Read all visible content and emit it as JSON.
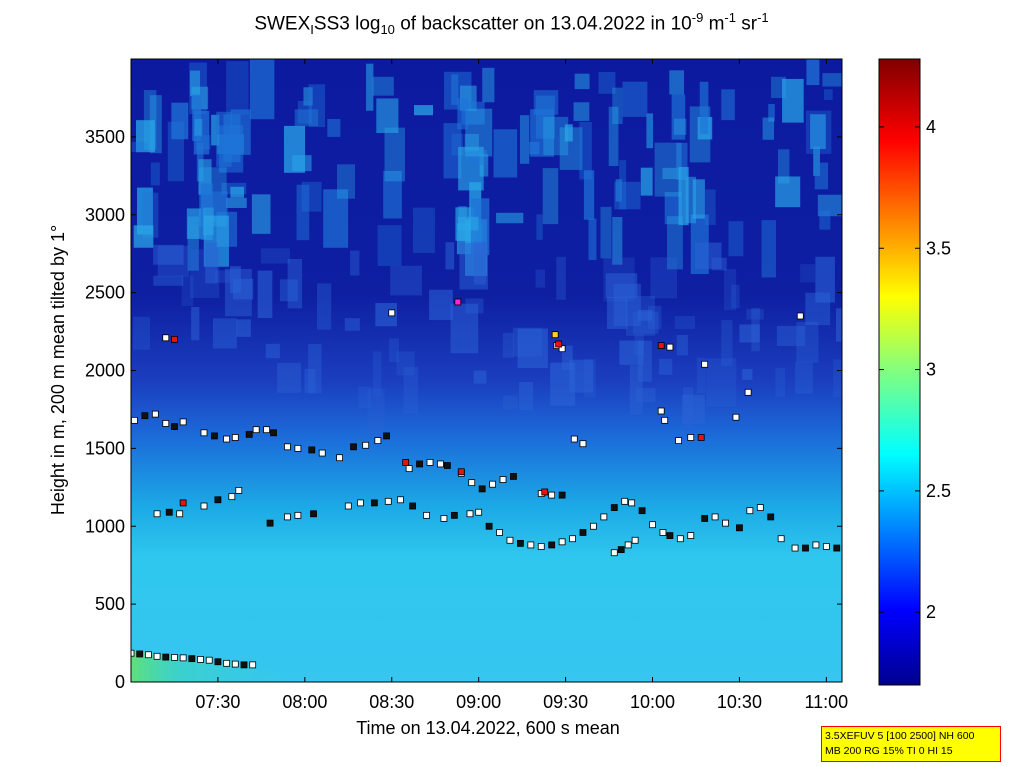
{
  "title": {
    "p1": "SWEX",
    "sub1": "I",
    "p2": "SS3 log",
    "sub2": "10",
    "p3": " of backscatter on 13.04.2022 in 10",
    "sup1": "-9",
    "p4": " m",
    "sup2": "-1",
    "p5": " sr",
    "sup3": "-1"
  },
  "chart_data": {
    "type": "heatmap",
    "title": "SWEX_I SS3 log_10 of backscatter on 13.04.2022 in 10^-9 m^-1 sr^-1",
    "xlabel": "Time on 13.04.2022, 600 s mean",
    "ylabel": "Height in m, 200 m mean tilted by 1°",
    "x_ticks": [
      "07:30",
      "08:00",
      "08:30",
      "09:00",
      "09:30",
      "10:00",
      "10:30",
      "11:00"
    ],
    "x_tick_hours": [
      7.5,
      8.0,
      8.5,
      9.0,
      9.5,
      10.0,
      10.5,
      11.0
    ],
    "xlim_hours": [
      7.0,
      11.09
    ],
    "y_ticks": [
      0,
      500,
      1000,
      1500,
      2000,
      2500,
      3000,
      3500
    ],
    "ylim": [
      0,
      4000
    ],
    "colorbar": {
      "ticks": [
        2,
        2.5,
        3,
        3.5,
        4
      ],
      "range": [
        1.7,
        4.28
      ],
      "colormap": "jet"
    },
    "layers": [
      {
        "name": "upper",
        "height_range": [
          2400,
          4000
        ],
        "value": 1.9
      },
      {
        "name": "middle",
        "height_range": [
          1600,
          2400
        ],
        "value": 2.2
      },
      {
        "name": "lower",
        "height_range": [
          0,
          1600
        ],
        "value": 2.65
      }
    ],
    "marker_series": [
      {
        "label": "layer-1600",
        "points": [
          [
            7.02,
            1680
          ],
          [
            7.08,
            1710
          ],
          [
            7.14,
            1720
          ],
          [
            7.2,
            1660
          ],
          [
            7.25,
            1640
          ],
          [
            7.3,
            1670
          ],
          [
            7.42,
            1600
          ],
          [
            7.48,
            1580
          ],
          [
            7.55,
            1560
          ],
          [
            7.6,
            1570
          ],
          [
            7.68,
            1590
          ],
          [
            7.72,
            1620
          ],
          [
            7.78,
            1620
          ],
          [
            7.82,
            1600
          ],
          [
            7.9,
            1510
          ],
          [
            7.96,
            1500
          ],
          [
            8.04,
            1490
          ],
          [
            8.1,
            1470
          ],
          [
            8.2,
            1440
          ],
          [
            8.28,
            1510
          ],
          [
            8.35,
            1520
          ],
          [
            8.42,
            1550
          ],
          [
            8.47,
            1580
          ]
        ]
      },
      {
        "label": "layer-1200",
        "points": [
          [
            8.6,
            1370
          ],
          [
            8.66,
            1400
          ],
          [
            8.72,
            1410
          ],
          [
            8.78,
            1400
          ],
          [
            8.82,
            1390
          ],
          [
            8.9,
            1340
          ],
          [
            8.96,
            1280
          ],
          [
            9.02,
            1240
          ],
          [
            9.08,
            1270
          ],
          [
            9.14,
            1300
          ],
          [
            9.2,
            1320
          ],
          [
            9.36,
            1210
          ],
          [
            9.42,
            1200
          ],
          [
            9.48,
            1200
          ]
        ]
      },
      {
        "label": "layer-1000",
        "points": [
          [
            7.15,
            1080
          ],
          [
            7.22,
            1090
          ],
          [
            7.28,
            1080
          ],
          [
            7.42,
            1130
          ],
          [
            7.5,
            1170
          ],
          [
            7.58,
            1190
          ],
          [
            7.62,
            1230
          ],
          [
            7.8,
            1020
          ],
          [
            7.9,
            1060
          ],
          [
            7.96,
            1070
          ],
          [
            8.05,
            1080
          ],
          [
            8.25,
            1130
          ],
          [
            8.32,
            1150
          ],
          [
            8.4,
            1150
          ],
          [
            8.48,
            1160
          ],
          [
            8.55,
            1170
          ],
          [
            8.62,
            1130
          ],
          [
            8.7,
            1070
          ],
          [
            8.8,
            1050
          ],
          [
            8.86,
            1070
          ],
          [
            8.95,
            1080
          ],
          [
            9.0,
            1090
          ],
          [
            9.06,
            1000
          ],
          [
            9.12,
            960
          ],
          [
            9.18,
            910
          ],
          [
            9.24,
            890
          ],
          [
            9.3,
            880
          ],
          [
            9.36,
            870
          ],
          [
            9.42,
            880
          ],
          [
            9.48,
            900
          ],
          [
            9.54,
            920
          ],
          [
            9.6,
            960
          ],
          [
            9.66,
            1000
          ],
          [
            9.72,
            1060
          ],
          [
            9.78,
            1120
          ],
          [
            9.84,
            1160
          ],
          [
            9.88,
            1150
          ],
          [
            9.94,
            1100
          ],
          [
            10.0,
            1010
          ],
          [
            10.06,
            960
          ],
          [
            10.1,
            940
          ],
          [
            10.16,
            920
          ],
          [
            10.22,
            940
          ],
          [
            10.3,
            1050
          ],
          [
            10.36,
            1060
          ],
          [
            10.42,
            1020
          ],
          [
            10.5,
            990
          ],
          [
            10.56,
            1100
          ],
          [
            10.62,
            1120
          ],
          [
            10.68,
            1060
          ],
          [
            10.74,
            920
          ],
          [
            10.82,
            860
          ],
          [
            10.88,
            860
          ],
          [
            10.94,
            880
          ],
          [
            11.0,
            870
          ],
          [
            11.06,
            860
          ]
        ]
      },
      {
        "label": "dip-850",
        "points": [
          [
            9.78,
            830
          ],
          [
            9.82,
            850
          ],
          [
            9.86,
            880
          ],
          [
            9.9,
            910
          ]
        ]
      },
      {
        "label": "surface-150",
        "points": [
          [
            7.0,
            185
          ],
          [
            7.05,
            180
          ],
          [
            7.1,
            175
          ],
          [
            7.15,
            165
          ],
          [
            7.2,
            160
          ],
          [
            7.25,
            158
          ],
          [
            7.3,
            155
          ],
          [
            7.35,
            150
          ],
          [
            7.4,
            145
          ],
          [
            7.45,
            140
          ],
          [
            7.5,
            130
          ],
          [
            7.55,
            120
          ],
          [
            7.6,
            115
          ],
          [
            7.65,
            110
          ],
          [
            7.7,
            110
          ]
        ]
      },
      {
        "label": "scattered-high",
        "points": [
          [
            7.2,
            2210
          ],
          [
            8.5,
            2370
          ],
          [
            9.45,
            2160
          ],
          [
            9.48,
            2140
          ],
          [
            10.1,
            2150
          ],
          [
            10.3,
            2040
          ],
          [
            10.55,
            1860
          ],
          [
            10.85,
            2350
          ],
          [
            10.05,
            1740
          ],
          [
            10.07,
            1680
          ],
          [
            10.15,
            1550
          ],
          [
            10.22,
            1570
          ],
          [
            10.48,
            1700
          ],
          [
            9.55,
            1560
          ],
          [
            9.6,
            1530
          ]
        ]
      },
      {
        "label": "highlight-red",
        "points": [
          [
            7.25,
            2200
          ],
          [
            7.3,
            1150
          ],
          [
            8.58,
            1410
          ],
          [
            8.9,
            1350
          ],
          [
            9.38,
            1220
          ],
          [
            9.46,
            2170
          ],
          [
            10.05,
            2160
          ],
          [
            10.28,
            1570
          ]
        ]
      },
      {
        "label": "highlight-yellow",
        "points": [
          [
            9.44,
            2230
          ]
        ]
      },
      {
        "label": "highlight-magenta",
        "points": [
          [
            8.88,
            2440
          ]
        ]
      }
    ]
  },
  "info_box": {
    "line1": "3.5XEFUV 5 [100 2500] NH 600",
    "line2": "MB 200 RG 15% TI 0 HI 15"
  }
}
